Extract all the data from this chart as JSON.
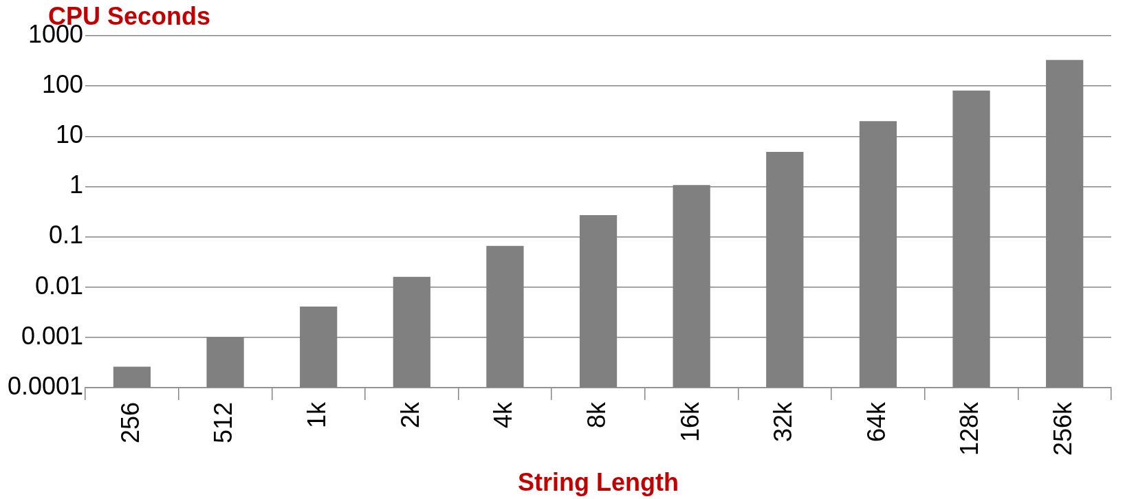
{
  "chart_data": {
    "type": "bar",
    "ylabel": "CPU Seconds",
    "xlabel": "String Length",
    "categories": [
      "256",
      "512",
      "1k",
      "2k",
      "4k",
      "8k",
      "16k",
      "32k",
      "64k",
      "128k",
      "256k"
    ],
    "values": [
      0.00026,
      0.001,
      0.0041,
      0.016,
      0.066,
      0.27,
      1.07,
      4.9,
      20,
      81,
      330
    ],
    "color": "#808080",
    "log": true,
    "ylim": [
      0.0001,
      1000
    ],
    "yticks": [
      0.0001,
      0.001,
      0.01,
      0.1,
      1,
      10,
      100,
      1000
    ],
    "grid": "y",
    "legend": false
  }
}
